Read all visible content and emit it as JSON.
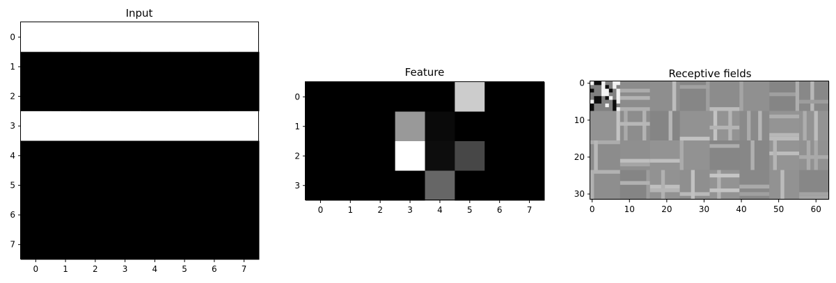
{
  "chart_data": [
    {
      "type": "heatmap",
      "title": "Input",
      "colormap": "gray",
      "vmin": 0,
      "vmax": 1,
      "x_ticks": [
        "0",
        "1",
        "2",
        "3",
        "4",
        "5",
        "6",
        "7"
      ],
      "y_ticks": [
        "0",
        "1",
        "2",
        "3",
        "4",
        "5",
        "6",
        "7"
      ],
      "values": [
        [
          1,
          1,
          1,
          1,
          1,
          1,
          1,
          1
        ],
        [
          0,
          0,
          0,
          0,
          0,
          0,
          0,
          0
        ],
        [
          0,
          0,
          0,
          0,
          0,
          0,
          0,
          0
        ],
        [
          1,
          1,
          1,
          1,
          1,
          1,
          1,
          1
        ],
        [
          0,
          0,
          0,
          0,
          0,
          0,
          0,
          0
        ],
        [
          0,
          0,
          0,
          0,
          0,
          0,
          0,
          0
        ],
        [
          0,
          0,
          0,
          0,
          0,
          0,
          0,
          0
        ],
        [
          0,
          0,
          0,
          0,
          0,
          0,
          0,
          0
        ]
      ]
    },
    {
      "type": "heatmap",
      "title": "Feature",
      "colormap": "gray",
      "vmin": 0,
      "vmax": 1,
      "x_ticks": [
        "0",
        "1",
        "2",
        "3",
        "4",
        "5",
        "6",
        "7"
      ],
      "y_ticks": [
        "0",
        "1",
        "2",
        "3"
      ],
      "values": [
        [
          0,
          0,
          0,
          0,
          0,
          0.8,
          0,
          0
        ],
        [
          0,
          0,
          0,
          0.6,
          0.04,
          0,
          0,
          0
        ],
        [
          0,
          0,
          0,
          1.0,
          0.05,
          0.28,
          0,
          0
        ],
        [
          0,
          0,
          0,
          0,
          0.4,
          0,
          0,
          0
        ]
      ]
    },
    {
      "type": "heatmap",
      "title": "Receptive fields",
      "colormap": "gray",
      "rows": 32,
      "cols": 64,
      "x_ticks": [
        "0",
        "10",
        "20",
        "30",
        "40",
        "50",
        "60"
      ],
      "y_ticks": [
        "0",
        "10",
        "20",
        "30"
      ],
      "background_level": 0.55,
      "description_values": "mosaic of 4x8 receptive-field patches, mostly mid-gray with faint light vertical/horizontal stripes; top-left patch shows high-contrast black/white noise"
    }
  ]
}
